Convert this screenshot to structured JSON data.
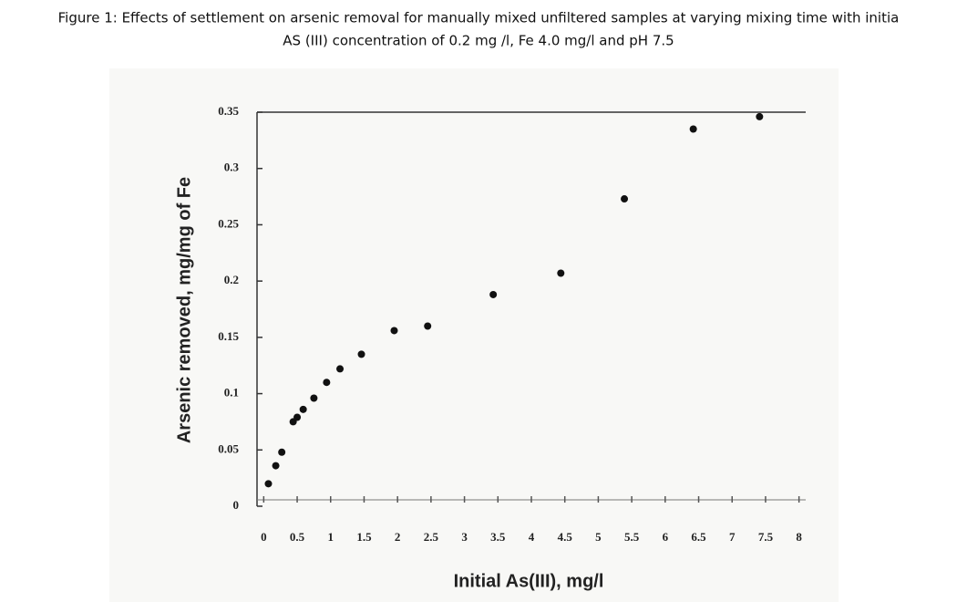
{
  "chart_data": {
    "type": "scatter",
    "title": [
      "Figure 1: Effects of settlement on arsenic removal for manually mixed unfiltered samples at varying mixing time with initia",
      "AS (III) concentration of 0.2 mg /l, Fe 4.0 mg/l and pH 7.5"
    ],
    "x_label": "Initial As(III), mg/l",
    "y_label": "Arsenic removed, mg/mg of Fe",
    "x": [
      0.07,
      0.18,
      0.27,
      0.44,
      0.5,
      0.59,
      0.75,
      0.94,
      1.14,
      1.46,
      1.95,
      2.45,
      3.43,
      4.44,
      5.39,
      6.42,
      7.41
    ],
    "values": [
      0.02,
      0.036,
      0.048,
      0.075,
      0.079,
      0.086,
      0.096,
      0.11,
      0.122,
      0.135,
      0.156,
      0.16,
      0.188,
      0.207,
      0.273,
      0.335,
      0.346
    ],
    "color": "#111111",
    "xlim": [
      -0.1,
      8.1
    ],
    "xticks": [
      0,
      0.5,
      1,
      1.5,
      2,
      2.5,
      3,
      3.5,
      4,
      4.5,
      5,
      5.5,
      6,
      6.5,
      7,
      7.5,
      8
    ],
    "ylim": [
      0,
      0.35
    ],
    "yticks": [
      0,
      0.05,
      0.1,
      0.15,
      0.2,
      0.25,
      0.3,
      0.35
    ]
  }
}
